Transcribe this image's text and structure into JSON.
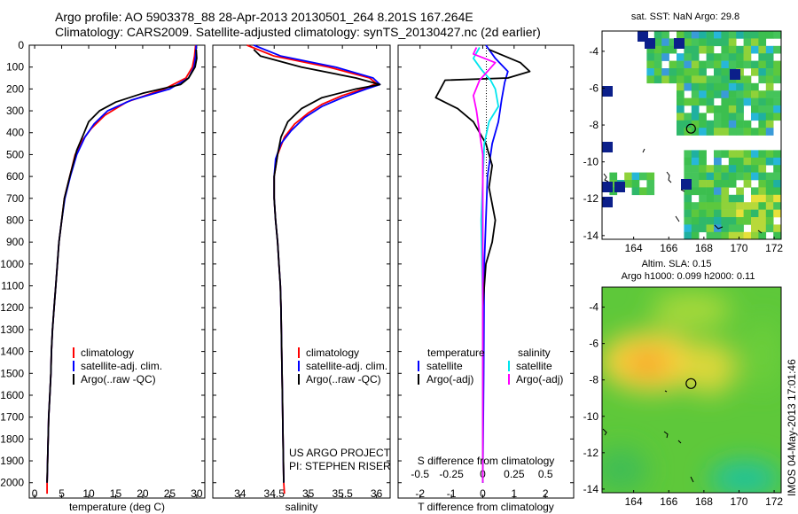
{
  "header": {
    "line1": "Argo profile: AO 5903378_88 28-Apr-2013 20130501_264 8.201S 167.264E",
    "line2": "Climatology: CARS2009. Satellite-adjusted climatology: synTS_20130427.nc (2d earlier)"
  },
  "colors": {
    "clim": "#ff0000",
    "sat": "#0000ff",
    "argo": "#000000",
    "cyan": "#00e5ee",
    "magenta": "#ff00ff"
  },
  "chart_data": [
    {
      "type": "line",
      "name": "temperature",
      "xlabel": "temperature (deg C)",
      "ylabel": "depth",
      "xlim": [
        -1,
        31.5
      ],
      "ylim": [
        2070,
        0
      ],
      "xticks": [
        0,
        5,
        10,
        15,
        20,
        25,
        30
      ],
      "yticks": [
        0,
        100,
        200,
        300,
        400,
        500,
        600,
        700,
        800,
        900,
        1000,
        1100,
        1200,
        1300,
        1400,
        1500,
        1600,
        1700,
        1800,
        1900,
        2000
      ],
      "legend": [
        "climatology",
        "satellite-adj. clim.",
        "Argo(..raw -QC)"
      ],
      "series": [
        {
          "name": "climatology",
          "color": "red",
          "points": [
            [
              29.8,
              0
            ],
            [
              29.6,
              50
            ],
            [
              29.2,
              100
            ],
            [
              28,
              150
            ],
            [
              24,
              200
            ],
            [
              17,
              260
            ],
            [
              13,
              320
            ],
            [
              10.5,
              380
            ],
            [
              9,
              430
            ],
            [
              7.5,
              500
            ],
            [
              6.5,
              600
            ],
            [
              5.5,
              700
            ],
            [
              5,
              800
            ],
            [
              4.5,
              900
            ],
            [
              4.2,
              1000
            ],
            [
              3.9,
              1100
            ],
            [
              3.6,
              1200
            ],
            [
              3.3,
              1300
            ],
            [
              3.1,
              1400
            ],
            [
              3,
              1500
            ],
            [
              2.8,
              1600
            ],
            [
              2.6,
              1700
            ],
            [
              2.5,
              1800
            ],
            [
              2.4,
              1900
            ],
            [
              2.3,
              2000
            ],
            [
              2.3,
              2050
            ]
          ]
        },
        {
          "name": "satellite",
          "color": "blue",
          "points": [
            [
              29.9,
              0
            ],
            [
              29.8,
              50
            ],
            [
              29.5,
              100
            ],
            [
              28.5,
              150
            ],
            [
              25,
              200
            ],
            [
              18,
              250
            ],
            [
              13.5,
              300
            ],
            [
              11,
              360
            ],
            [
              9.3,
              420
            ],
            [
              7.8,
              500
            ],
            [
              6.6,
              600
            ],
            [
              5.6,
              700
            ],
            [
              5,
              800
            ],
            [
              4.5,
              900
            ],
            [
              4.2,
              1000
            ],
            [
              3.9,
              1100
            ],
            [
              3.6,
              1200
            ],
            [
              3.3,
              1300
            ],
            [
              3.1,
              1400
            ],
            [
              3,
              1500
            ],
            [
              2.8,
              1600
            ],
            [
              2.6,
              1700
            ],
            [
              2.5,
              1800
            ],
            [
              2.4,
              1900
            ],
            [
              2.3,
              2000
            ]
          ]
        },
        {
          "name": "argo",
          "color": "black",
          "points": [
            [
              29.9,
              20
            ],
            [
              30,
              60
            ],
            [
              29.7,
              100
            ],
            [
              28.5,
              150
            ],
            [
              27,
              180
            ],
            [
              20,
              220
            ],
            [
              15,
              260
            ],
            [
              12,
              300
            ],
            [
              10,
              350
            ],
            [
              9,
              410
            ],
            [
              7.8,
              480
            ],
            [
              6.5,
              600
            ],
            [
              5.5,
              700
            ],
            [
              5,
              800
            ],
            [
              4.5,
              900
            ],
            [
              4.2,
              1000
            ],
            [
              3.9,
              1100
            ],
            [
              3.6,
              1200
            ],
            [
              3.3,
              1300
            ],
            [
              3.1,
              1400
            ],
            [
              3,
              1500
            ],
            [
              2.8,
              1600
            ],
            [
              2.6,
              1700
            ],
            [
              2.5,
              1800
            ],
            [
              2.4,
              1900
            ],
            [
              2.3,
              2000
            ]
          ]
        }
      ]
    },
    {
      "type": "line",
      "name": "salinity",
      "xlabel": "salinity",
      "xlim": [
        33.6,
        36.2
      ],
      "ylim": [
        2070,
        0
      ],
      "xticks": [
        34,
        34.5,
        35,
        35.5,
        36
      ],
      "legend": [
        "climatology",
        "satellite-adj. clim.",
        "Argo(..raw -QC)"
      ],
      "annotation": [
        "US ARGO PROJECT",
        "PI: STEPHEN RISER"
      ],
      "series": [
        {
          "name": "climatology",
          "color": "red",
          "points": [
            [
              34.1,
              0
            ],
            [
              34.5,
              50
            ],
            [
              35.3,
              100
            ],
            [
              35.9,
              150
            ],
            [
              36,
              175
            ],
            [
              35.8,
              200
            ],
            [
              35.5,
              230
            ],
            [
              35.2,
              270
            ],
            [
              35,
              310
            ],
            [
              34.8,
              360
            ],
            [
              34.65,
              420
            ],
            [
              34.55,
              500
            ],
            [
              34.5,
              600
            ],
            [
              34.5,
              700
            ],
            [
              34.52,
              800
            ],
            [
              34.55,
              900
            ],
            [
              34.57,
              1000
            ],
            [
              34.59,
              1100
            ],
            [
              34.6,
              1200
            ],
            [
              34.61,
              1400
            ],
            [
              34.62,
              1600
            ],
            [
              34.63,
              1800
            ],
            [
              34.64,
              2000
            ],
            [
              34.65,
              2050
            ]
          ]
        },
        {
          "name": "satellite",
          "color": "blue",
          "points": [
            [
              34.2,
              0
            ],
            [
              34.6,
              50
            ],
            [
              35.4,
              100
            ],
            [
              35.95,
              150
            ],
            [
              36.05,
              180
            ],
            [
              35.85,
              200
            ],
            [
              35.5,
              240
            ],
            [
              35.2,
              280
            ],
            [
              34.95,
              330
            ],
            [
              34.75,
              390
            ],
            [
              34.6,
              450
            ],
            [
              34.52,
              520
            ],
            [
              34.5,
              600
            ],
            [
              34.5,
              700
            ],
            [
              34.52,
              800
            ],
            [
              34.55,
              900
            ],
            [
              34.57,
              1000
            ],
            [
              34.59,
              1100
            ],
            [
              34.6,
              1200
            ],
            [
              34.61,
              1400
            ],
            [
              34.62,
              1600
            ],
            [
              34.63,
              1800
            ],
            [
              34.64,
              2000
            ]
          ]
        },
        {
          "name": "argo",
          "color": "black",
          "points": [
            [
              34.2,
              20
            ],
            [
              34.3,
              50
            ],
            [
              34.9,
              100
            ],
            [
              35.7,
              150
            ],
            [
              36.05,
              180
            ],
            [
              35.7,
              200
            ],
            [
              35.2,
              240
            ],
            [
              34.9,
              290
            ],
            [
              34.7,
              350
            ],
            [
              34.6,
              420
            ],
            [
              34.55,
              500
            ],
            [
              34.5,
              600
            ],
            [
              34.5,
              700
            ],
            [
              34.52,
              800
            ],
            [
              34.55,
              900
            ],
            [
              34.57,
              1000
            ],
            [
              34.59,
              1100
            ],
            [
              34.6,
              1200
            ],
            [
              34.61,
              1400
            ],
            [
              34.62,
              1600
            ],
            [
              34.63,
              1800
            ],
            [
              34.64,
              2000
            ]
          ]
        }
      ]
    },
    {
      "type": "line",
      "name": "differences",
      "xlabel": "T difference from climatology",
      "xlabel_top": "S difference from climatology",
      "xlim": [
        -2.7,
        2.9
      ],
      "ylim": [
        2070,
        0
      ],
      "xticks": [
        -2,
        -1,
        0,
        1,
        2
      ],
      "xticks_s": [
        -0.5,
        -0.25,
        0,
        0.25,
        0.5
      ],
      "legend_t_title": "temperature",
      "legend_s_title": "salinity",
      "legend_t": [
        "satellite",
        "Argo(-adj)"
      ],
      "legend_s": [
        "satellite",
        "Argo(-adj)"
      ],
      "series": [
        {
          "name": "T satellite",
          "color": "blue",
          "points": [
            [
              0.1,
              0
            ],
            [
              0.4,
              60
            ],
            [
              0.8,
              120
            ],
            [
              0.7,
              170
            ],
            [
              0.6,
              250
            ],
            [
              0.5,
              350
            ],
            [
              0.3,
              450
            ],
            [
              0.15,
              600
            ],
            [
              0.1,
              800
            ],
            [
              0.05,
              1000
            ],
            [
              0.03,
              1500
            ],
            [
              0,
              2000
            ]
          ]
        },
        {
          "name": "T argo",
          "color": "black",
          "points": [
            [
              0.2,
              20
            ],
            [
              1.2,
              80
            ],
            [
              1.5,
              120
            ],
            [
              0.8,
              150
            ],
            [
              -1.2,
              160
            ],
            [
              -1.5,
              240
            ],
            [
              -0.8,
              290
            ],
            [
              -0.3,
              350
            ],
            [
              0.1,
              450
            ],
            [
              0.3,
              550
            ],
            [
              0.2,
              650
            ],
            [
              0.4,
              800
            ],
            [
              0.3,
              900
            ],
            [
              0.1,
              1000
            ],
            [
              0,
              1200
            ],
            [
              0,
              2000
            ]
          ]
        },
        {
          "name": "S satellite",
          "color": "cyan",
          "points": [
            [
              -0.1,
              10
            ],
            [
              -0.3,
              60
            ],
            [
              -0.05,
              110
            ],
            [
              0.25,
              160
            ],
            [
              0.4,
              200
            ],
            [
              0.5,
              280
            ],
            [
              0.2,
              350
            ],
            [
              0.05,
              450
            ],
            [
              -0.05,
              800
            ],
            [
              0,
              1200
            ],
            [
              0,
              2000
            ]
          ]
        },
        {
          "name": "S argo",
          "color": "magenta",
          "points": [
            [
              -0.2,
              10
            ],
            [
              -0.3,
              40
            ],
            [
              0.4,
              80
            ],
            [
              -0.1,
              160
            ],
            [
              -0.3,
              230
            ],
            [
              -0.2,
              300
            ],
            [
              -0.1,
              400
            ],
            [
              0,
              500
            ],
            [
              0,
              2000
            ]
          ]
        }
      ]
    },
    {
      "type": "heatmap",
      "name": "sst-map",
      "title": "sat. SST: NaN Argo: 29.8",
      "xlim": [
        162.2,
        172.4
      ],
      "ylim": [
        -14.2,
        -2.9
      ],
      "xticks": [
        164,
        166,
        168,
        170,
        172
      ],
      "yticks": [
        -4,
        -6,
        -8,
        -10,
        -12,
        -14
      ],
      "argo_position": [
        167.264,
        -8.201
      ]
    },
    {
      "type": "heatmap",
      "name": "sla-map",
      "title1": "Altim. SLA: 0.15",
      "title2": "Argo h1000: 0.099 h2000: 0.11",
      "xlim": [
        162.2,
        172.4
      ],
      "ylim": [
        -14.2,
        -2.9
      ],
      "xticks": [
        164,
        166,
        168,
        170,
        172
      ],
      "yticks": [
        -4,
        -6,
        -8,
        -10,
        -12,
        -14
      ],
      "argo_position": [
        167.264,
        -8.201
      ]
    }
  ],
  "footer": {
    "stamp": "IMOS 04-May-2013 17:01:46"
  }
}
